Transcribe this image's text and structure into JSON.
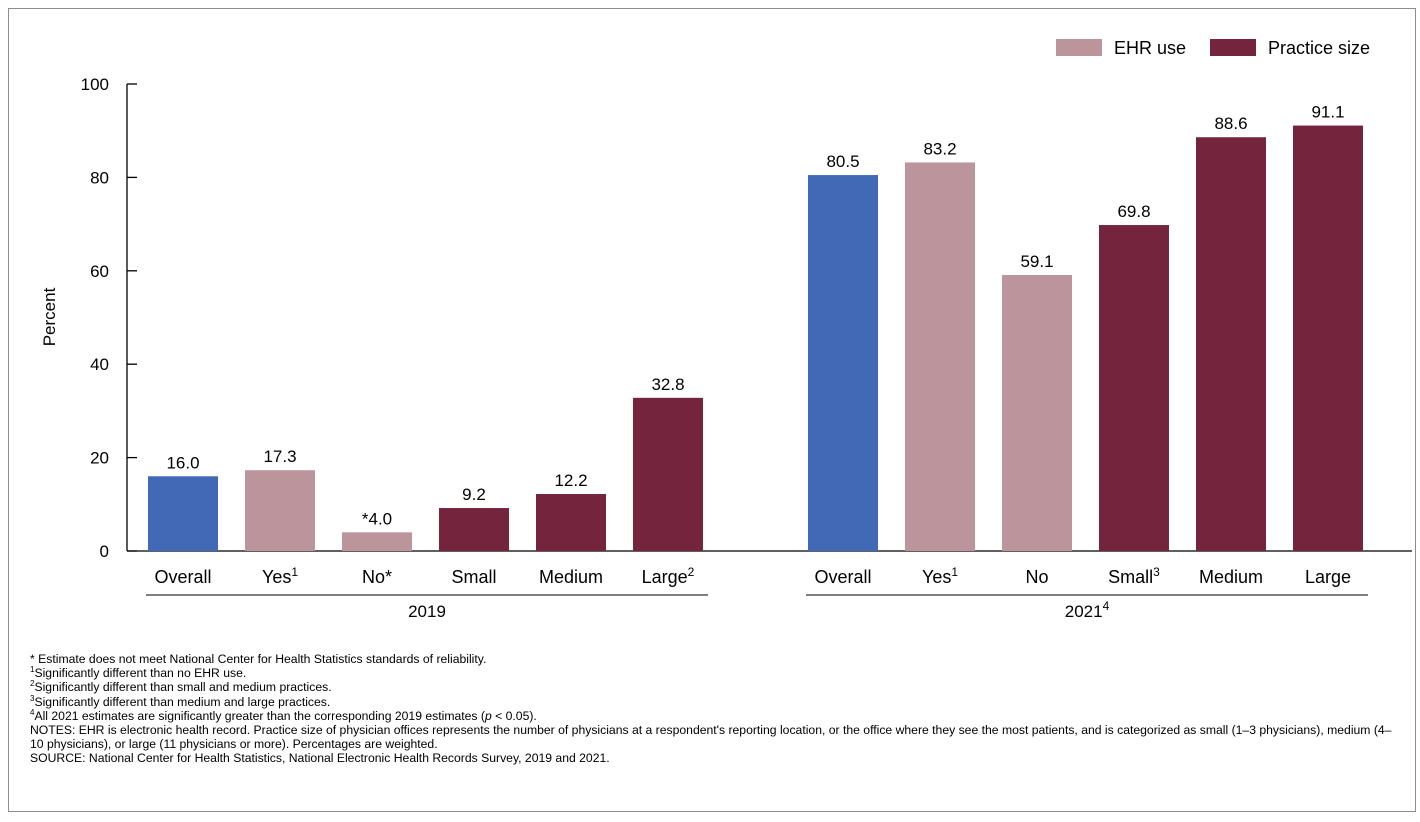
{
  "chart_data": {
    "type": "bar",
    "ylabel": "Percent",
    "ylim": [
      0,
      100
    ],
    "yticks": [
      0,
      20,
      40,
      60,
      80,
      100
    ],
    "legend": {
      "placement": "top-right",
      "entries": [
        {
          "label": "EHR use",
          "color": "#bc949b"
        },
        {
          "label": "Practice size",
          "color": "#74253d"
        }
      ]
    },
    "groups": [
      {
        "label": "2019",
        "sup": "",
        "bars": [
          {
            "category": "Overall",
            "sup": "",
            "value": 16.0,
            "value_label": "16.0",
            "kind": "overall"
          },
          {
            "category": "Yes",
            "sup": "1",
            "value": 17.3,
            "value_label": "17.3",
            "kind": "ehr"
          },
          {
            "category": "No*",
            "sup": "",
            "value": 4.0,
            "value_label": "*4.0",
            "kind": "ehr"
          },
          {
            "category": "Small",
            "sup": "",
            "value": 9.2,
            "value_label": "9.2",
            "kind": "size"
          },
          {
            "category": "Medium",
            "sup": "",
            "value": 12.2,
            "value_label": "12.2",
            "kind": "size"
          },
          {
            "category": "Large",
            "sup": "2",
            "value": 32.8,
            "value_label": "32.8",
            "kind": "size"
          }
        ]
      },
      {
        "label": "2021",
        "sup": "4",
        "bars": [
          {
            "category": "Overall",
            "sup": "",
            "value": 80.5,
            "value_label": "80.5",
            "kind": "overall"
          },
          {
            "category": "Yes",
            "sup": "1",
            "value": 83.2,
            "value_label": "83.2",
            "kind": "ehr"
          },
          {
            "category": "No",
            "sup": "",
            "value": 59.1,
            "value_label": "59.1",
            "kind": "ehr"
          },
          {
            "category": "Small",
            "sup": "3",
            "value": 69.8,
            "value_label": "69.8",
            "kind": "size"
          },
          {
            "category": "Medium",
            "sup": "",
            "value": 88.6,
            "value_label": "88.6",
            "kind": "size"
          },
          {
            "category": "Large",
            "sup": "",
            "value": 91.1,
            "value_label": "91.1",
            "kind": "size"
          }
        ]
      }
    ],
    "colors": {
      "overall": "#4169b6",
      "ehr": "#bc949b",
      "size": "#74253d"
    }
  },
  "notes": {
    "star": "* Estimate does not meet National Center for Health Statistics standards of reliability.",
    "n1": {
      "mark": "1",
      "text": "Significantly different than no EHR use."
    },
    "n2": {
      "mark": "2",
      "text": "Significantly different than small and medium practices."
    },
    "n3": {
      "mark": "3",
      "text": "Significantly different than medium and large practices."
    },
    "n4": {
      "mark": "4",
      "text_before": "All 2021 estimates are significantly greater than the corresponding 2019 estimates (",
      "p": "p",
      "text_after": " < 0.05)."
    },
    "notes_text": "NOTES: EHR is electronic health record. Practice size of physician offices represents the number of physicians at a respondent's reporting location, or the office where they see the most patients, and is categorized as small (1–3 physicians), medium (4–10 physicians), or large (11 physicians or more). Percentages are weighted.",
    "source": "SOURCE: National Center for Health Statistics, National Electronic Health Records Survey, 2019 and 2021."
  }
}
